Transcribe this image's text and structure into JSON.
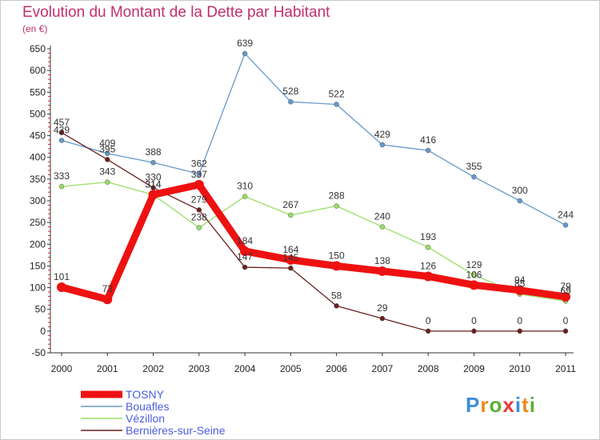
{
  "chart_data": {
    "type": "line",
    "title": "Evolution du Montant de la Dette par Habitant",
    "subtitle": "(en €)",
    "x": [
      "2000",
      "2001",
      "2002",
      "2003",
      "2004",
      "2005",
      "2006",
      "2007",
      "2008",
      "2009",
      "2010",
      "2011"
    ],
    "ylim": [
      -50,
      650
    ],
    "yticks": [
      -50,
      0,
      50,
      100,
      150,
      200,
      250,
      300,
      350,
      400,
      450,
      500,
      550,
      600,
      650
    ],
    "grid": false,
    "legend_position": "bottom-left",
    "series": [
      {
        "name": "TOSNY",
        "color": "#ee1111",
        "values": [
          101,
          73,
          314,
          337,
          184,
          164,
          150,
          138,
          126,
          106,
          94,
          79
        ]
      },
      {
        "name": "Bouafles",
        "color": "#6699cc",
        "values": [
          439,
          409,
          388,
          362,
          639,
          528,
          522,
          429,
          416,
          355,
          300,
          244
        ]
      },
      {
        "name": "Vézillon",
        "color": "#99dd66",
        "values": [
          333,
          343,
          314,
          238,
          310,
          267,
          288,
          240,
          193,
          129,
          85,
          69
        ]
      },
      {
        "name": "Bernières-sur-Seine",
        "color": "#6b1f1f",
        "values": [
          457,
          395,
          330,
          279,
          147,
          145,
          58,
          29,
          0,
          0,
          0,
          0
        ]
      }
    ]
  },
  "logo": {
    "text": [
      "P",
      "r",
      "o",
      "x",
      "i",
      "t",
      "i"
    ],
    "colors": [
      "#3a8fd8",
      "#e88a1a",
      "#5cb030",
      "#e83a3a",
      "#3a8fd8",
      "#e88a1a",
      "#5cb030"
    ]
  }
}
